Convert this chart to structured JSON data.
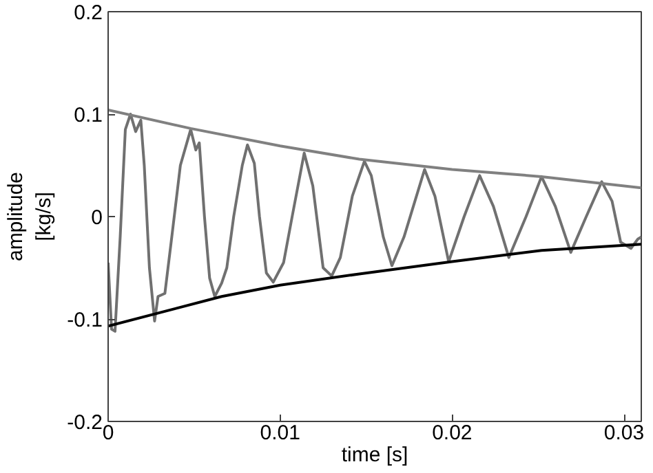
{
  "chart_data": {
    "type": "line",
    "xlabel": "time [s]",
    "ylabel": "amplitude\n[kg/s]",
    "xlim": [
      0,
      0.031
    ],
    "ylim": [
      -0.2,
      0.2
    ],
    "xticks": [
      0,
      0.01,
      0.02,
      0.03
    ],
    "yticks": [
      -0.2,
      -0.1,
      0,
      0.1,
      0.2
    ],
    "line_style": "solid",
    "series": [
      {
        "color": "#707070",
        "x": [
          0,
          0.0002,
          0.0004,
          0.0007,
          0.001,
          0.0013,
          0.0016,
          0.0019,
          0.0021,
          0.0024,
          0.0027,
          0.0029,
          0.0033,
          0.0037,
          0.0042,
          0.0048,
          0.0051,
          0.0053,
          0.0056,
          0.0059,
          0.0062,
          0.0066,
          0.0069,
          0.0073,
          0.0078,
          0.0081,
          0.0085,
          0.0088,
          0.0092,
          0.0096,
          0.0102,
          0.0107,
          0.0114,
          0.0119,
          0.0125,
          0.013,
          0.0135,
          0.0142,
          0.0149,
          0.0153,
          0.016,
          0.0165,
          0.0172,
          0.0184,
          0.019,
          0.0198,
          0.0207,
          0.0216,
          0.0224,
          0.0233,
          0.0243,
          0.0252,
          0.026,
          0.0269,
          0.0278,
          0.0287,
          0.0293,
          0.0298,
          0.0304,
          0.0308,
          0.031
        ],
        "values": [
          -0.045,
          -0.11,
          -0.112,
          -0.02,
          0.085,
          0.1,
          0.083,
          0.094,
          0.05,
          -0.05,
          -0.102,
          -0.078,
          -0.075,
          -0.02,
          0.05,
          0.085,
          0.065,
          0.072,
          0.0,
          -0.06,
          -0.078,
          -0.065,
          -0.05,
          0.0,
          0.05,
          0.07,
          0.052,
          0.0,
          -0.055,
          -0.064,
          -0.045,
          0.0,
          0.062,
          0.03,
          -0.05,
          -0.058,
          -0.04,
          0.02,
          0.054,
          0.04,
          -0.02,
          -0.048,
          -0.02,
          0.046,
          0.02,
          -0.044,
          0.0,
          0.04,
          0.01,
          -0.04,
          0.0,
          0.039,
          0.01,
          -0.035,
          0.0,
          0.034,
          0.015,
          -0.025,
          -0.031,
          -0.022,
          -0.02
        ]
      },
      {
        "color": "#808080",
        "x": [
          0,
          0.0048,
          0.01,
          0.0146,
          0.02,
          0.0252,
          0.031
        ],
        "values": [
          0.104,
          0.086,
          0.069,
          0.056,
          0.046,
          0.039,
          0.028
        ]
      },
      {
        "color": "#000000",
        "x": [
          0,
          0.0066,
          0.01,
          0.0146,
          0.02,
          0.0252,
          0.031
        ],
        "values": [
          -0.107,
          -0.078,
          -0.067,
          -0.056,
          -0.044,
          -0.033,
          -0.027
        ]
      }
    ]
  }
}
